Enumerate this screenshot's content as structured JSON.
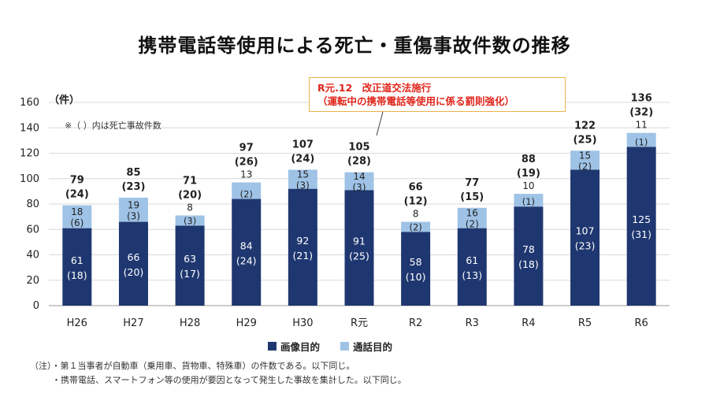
{
  "title": "携帯電話等使用による死亡・重傷事故件数の推移",
  "unit_label": "（件）",
  "paren_note": "※（ ）内は死亡事故件数",
  "annotation": {
    "line1": "R元.12　改正道交法施行",
    "line2": "（運転中の携帯電話等使用に係る罰則強化）"
  },
  "legend": {
    "gazou": "画像目的",
    "tsuwa": "通話目的"
  },
  "footnotes": {
    "line1": "（注）・第１当事者が自動車（乗用車、貨物車、特殊車）の件数である。以下同じ。",
    "line2": "・携帯電話、スマートフォン等の使用が要因となって発生した事故を集計した。以下同じ。"
  },
  "colors": {
    "gazou": "#1f3770",
    "tsuwa": "#9fc3e6",
    "annotation_border": "#e8b24a",
    "annotation_text": "#e0251b"
  },
  "chart_data": {
    "type": "bar",
    "stacked": true,
    "title": "携帯電話等使用による死亡・重傷事故件数の推移",
    "ylabel": "（件）",
    "ylim": [
      0,
      160
    ],
    "yticks": [
      0,
      20,
      40,
      60,
      80,
      100,
      120,
      140,
      160
    ],
    "grid": true,
    "legend_position": "bottom",
    "categories": [
      "H26",
      "H27",
      "H28",
      "H29",
      "H30",
      "R元",
      "R2",
      "R3",
      "R4",
      "R5",
      "R6"
    ],
    "series": [
      {
        "name": "画像目的",
        "values": [
          61,
          66,
          63,
          84,
          92,
          91,
          58,
          61,
          78,
          107,
          125
        ],
        "fatal": [
          18,
          20,
          17,
          24,
          21,
          25,
          10,
          13,
          18,
          23,
          31
        ]
      },
      {
        "name": "通話目的",
        "values": [
          18,
          19,
          8,
          13,
          15,
          14,
          8,
          16,
          10,
          15,
          11
        ],
        "fatal": [
          6,
          3,
          3,
          2,
          3,
          3,
          2,
          2,
          1,
          2,
          1
        ]
      }
    ],
    "totals": [
      79,
      85,
      71,
      97,
      107,
      105,
      66,
      77,
      88,
      122,
      136
    ],
    "total_fatal": [
      24,
      23,
      20,
      26,
      24,
      28,
      12,
      15,
      19,
      25,
      32
    ]
  }
}
